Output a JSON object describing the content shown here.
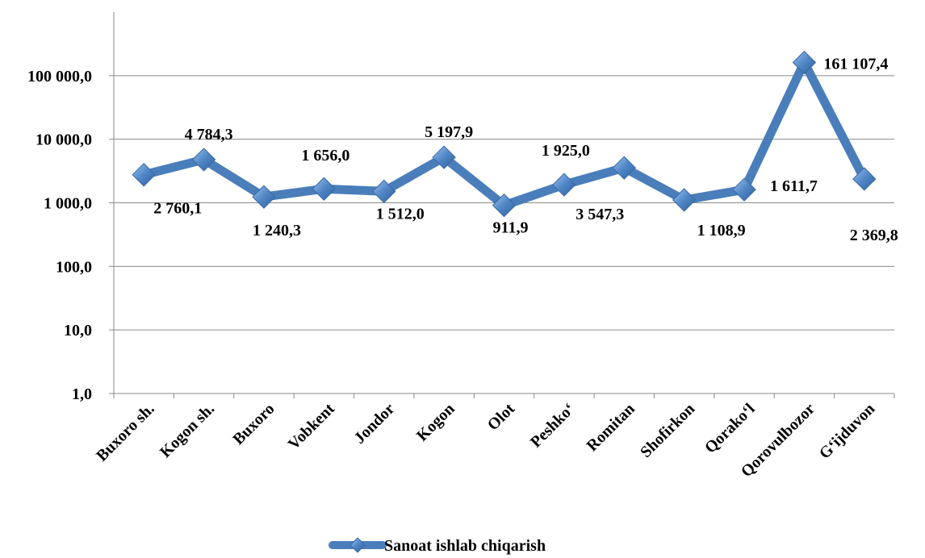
{
  "chart_data": {
    "type": "line",
    "title": "",
    "xlabel": "",
    "ylabel": "",
    "y_scale": "log",
    "ylim": [
      1,
      1000000
    ],
    "yticks": [
      {
        "value": 1,
        "label": "1,0"
      },
      {
        "value": 10,
        "label": "10,0"
      },
      {
        "value": 100,
        "label": "100,0"
      },
      {
        "value": 1000,
        "label": "1 000,0"
      },
      {
        "value": 10000,
        "label": "10 000,0"
      },
      {
        "value": 100000,
        "label": "100 000,0"
      }
    ],
    "grid": true,
    "legend_position": "bottom",
    "categories": [
      "Buxoro sh.",
      "Kogon sh.",
      "Buxoro",
      "Vobkent",
      "Jondor",
      "Kogon",
      "Olot",
      "Peshko‘",
      "Romitan",
      "Shofirkon",
      "Qorako‘l",
      "Qorovulbozor",
      "G‘ijduvon"
    ],
    "series": [
      {
        "name": "Sanoat ishlab chiqarish",
        "color": "#4a7ebb",
        "values": [
          2760.1,
          4784.3,
          1240.3,
          1656.0,
          1512.0,
          5197.9,
          911.9,
          1925.0,
          3547.3,
          1108.9,
          1611.7,
          161107.4,
          2369.8
        ],
        "value_labels": [
          "2 760,1",
          "4 784,3",
          "1 240,3",
          "1 656,0",
          "1 512,0",
          "5 197,9",
          "911,9",
          "1 925,0",
          "3 547,3",
          "1 108,9",
          "1 611,7",
          "161 107,4",
          "2 369,8"
        ]
      }
    ]
  }
}
